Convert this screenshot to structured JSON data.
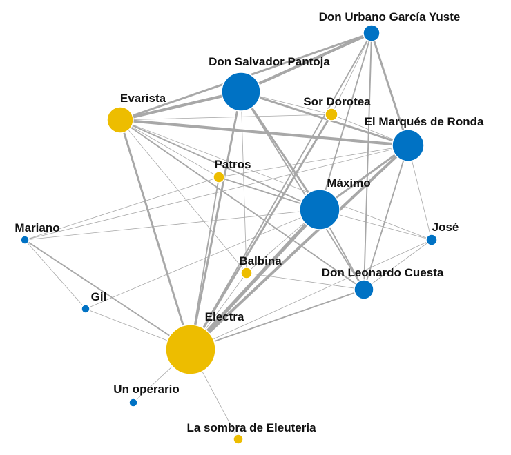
{
  "colors": {
    "female": "#EDBD00",
    "male": "#0072C4",
    "edge": "#A8A8A8"
  },
  "nodes": [
    {
      "id": "urbano",
      "label": "Don Urbano García Yuste",
      "group": "male"
    },
    {
      "id": "salvador",
      "label": "Don Salvador Pantoja",
      "group": "male"
    },
    {
      "id": "evarista",
      "label": "Evarista",
      "group": "female"
    },
    {
      "id": "dorotea",
      "label": "Sor Dorotea",
      "group": "female"
    },
    {
      "id": "marques",
      "label": "El Marqués de Ronda",
      "group": "male"
    },
    {
      "id": "patros",
      "label": "Patros",
      "group": "female"
    },
    {
      "id": "maximo",
      "label": "Máximo",
      "group": "male"
    },
    {
      "id": "mariano",
      "label": "Mariano",
      "group": "male"
    },
    {
      "id": "jose",
      "label": "José",
      "group": "male"
    },
    {
      "id": "balbina",
      "label": "Balbina",
      "group": "female"
    },
    {
      "id": "leonardo",
      "label": "Don Leonardo Cuesta",
      "group": "male"
    },
    {
      "id": "gil",
      "label": "Gil",
      "group": "male"
    },
    {
      "id": "electra",
      "label": "Electra",
      "group": "female"
    },
    {
      "id": "operario",
      "label": "Un operario",
      "group": "male"
    },
    {
      "id": "sombra",
      "label": "La sombra de Eleuteria",
      "group": "female"
    }
  ],
  "edges": [
    {
      "source": "salvador",
      "target": "urbano",
      "weight": 4
    },
    {
      "source": "evarista",
      "target": "urbano",
      "weight": 3
    },
    {
      "source": "marques",
      "target": "urbano",
      "weight": 3
    },
    {
      "source": "maximo",
      "target": "urbano",
      "weight": 2
    },
    {
      "source": "electra",
      "target": "urbano",
      "weight": 2
    },
    {
      "source": "leonardo",
      "target": "urbano",
      "weight": 2
    },
    {
      "source": "dorotea",
      "target": "urbano",
      "weight": 1
    },
    {
      "source": "evarista",
      "target": "salvador",
      "weight": 4
    },
    {
      "source": "salvador",
      "target": "marques",
      "weight": 3
    },
    {
      "source": "salvador",
      "target": "maximo",
      "weight": 3
    },
    {
      "source": "salvador",
      "target": "electra",
      "weight": 3
    },
    {
      "source": "salvador",
      "target": "dorotea",
      "weight": 1
    },
    {
      "source": "salvador",
      "target": "leonardo",
      "weight": 2
    },
    {
      "source": "salvador",
      "target": "balbina",
      "weight": 1
    },
    {
      "source": "evarista",
      "target": "marques",
      "weight": 4
    },
    {
      "source": "evarista",
      "target": "maximo",
      "weight": 2
    },
    {
      "source": "evarista",
      "target": "electra",
      "weight": 3
    },
    {
      "source": "evarista",
      "target": "dorotea",
      "weight": 1
    },
    {
      "source": "evarista",
      "target": "leonardo",
      "weight": 2
    },
    {
      "source": "evarista",
      "target": "jose",
      "weight": 1
    },
    {
      "source": "evarista",
      "target": "patros",
      "weight": 1
    },
    {
      "source": "evarista",
      "target": "balbina",
      "weight": 1
    },
    {
      "source": "marques",
      "target": "maximo",
      "weight": 3
    },
    {
      "source": "marques",
      "target": "electra",
      "weight": 4
    },
    {
      "source": "marques",
      "target": "leonardo",
      "weight": 2
    },
    {
      "source": "marques",
      "target": "jose",
      "weight": 1
    },
    {
      "source": "marques",
      "target": "patros",
      "weight": 1
    },
    {
      "source": "marques",
      "target": "mariano",
      "weight": 1
    },
    {
      "source": "marques",
      "target": "dorotea",
      "weight": 1
    },
    {
      "source": "maximo",
      "target": "electra",
      "weight": 5
    },
    {
      "source": "maximo",
      "target": "leonardo",
      "weight": 2
    },
    {
      "source": "maximo",
      "target": "mariano",
      "weight": 1
    },
    {
      "source": "maximo",
      "target": "patros",
      "weight": 2
    },
    {
      "source": "maximo",
      "target": "jose",
      "weight": 1
    },
    {
      "source": "maximo",
      "target": "gil",
      "weight": 1
    },
    {
      "source": "maximo",
      "target": "balbina",
      "weight": 1
    },
    {
      "source": "dorotea",
      "target": "electra",
      "weight": 3
    },
    {
      "source": "electra",
      "target": "leonardo",
      "weight": 2
    },
    {
      "source": "electra",
      "target": "mariano",
      "weight": 2
    },
    {
      "source": "electra",
      "target": "gil",
      "weight": 1
    },
    {
      "source": "electra",
      "target": "patros",
      "weight": 2
    },
    {
      "source": "electra",
      "target": "operario",
      "weight": 1
    },
    {
      "source": "electra",
      "target": "sombra",
      "weight": 1
    },
    {
      "source": "electra",
      "target": "balbina",
      "weight": 1
    },
    {
      "source": "electra",
      "target": "jose",
      "weight": 1
    },
    {
      "source": "balbina",
      "target": "leonardo",
      "weight": 1
    },
    {
      "source": "patros",
      "target": "mariano",
      "weight": 1
    },
    {
      "source": "mariano",
      "target": "gil",
      "weight": 1
    },
    {
      "source": "leonardo",
      "target": "jose",
      "weight": 1
    }
  ]
}
